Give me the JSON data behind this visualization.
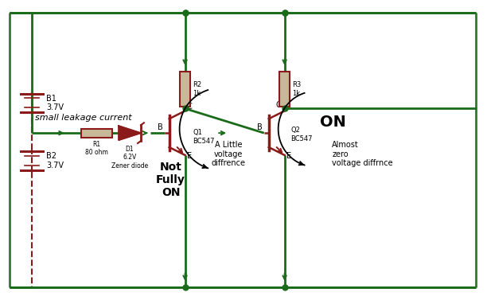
{
  "wire_color": "#1a6b1a",
  "component_color": "#8B1A1A",
  "text_color": "#000000",
  "bg_color": "#ffffff",
  "border_color": "#2d7a2d",
  "res_fill": "#c8b89a",
  "figsize": [
    6.12,
    3.77
  ],
  "dpi": 100,
  "leakage_text": "small leakage current",
  "not_fully_on": "Not\nFully\nON",
  "on_label": "ON",
  "a_little_voltage": "A Little\nvoltage\ndiffrence",
  "almost_zero": "Almost\nzero\nvoltage diffrnce"
}
